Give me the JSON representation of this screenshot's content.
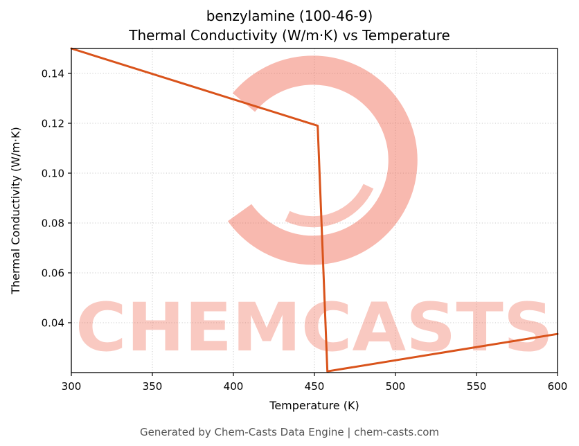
{
  "header": {
    "title_line1": "benzylamine (100-46-9)",
    "title_line2": "Thermal Conductivity (W/m·K) vs Temperature"
  },
  "footer": {
    "credit": "Generated by Chem-Casts Data Engine | chem-casts.com"
  },
  "watermark": {
    "text": "CHEMCASTS",
    "logo": "chemcasts-brush-swirl-logo",
    "color": "#ee5941"
  },
  "chart_data": {
    "type": "line",
    "title": "benzylamine (100-46-9) — Thermal Conductivity (W/m·K) vs Temperature",
    "xlabel": "Temperature (K)",
    "ylabel": "Thermal Conductivity (W/m·K)",
    "xlim": [
      300,
      600
    ],
    "ylim": [
      0.02,
      0.15
    ],
    "xticks": [
      300,
      350,
      400,
      450,
      500,
      550,
      600
    ],
    "yticks": [
      0.04,
      0.06,
      0.08,
      0.1,
      0.12,
      0.14
    ],
    "grid": true,
    "legend": "none",
    "line_color": "#d9531b",
    "line_width": 3,
    "series": [
      {
        "name": "thermal-conductivity",
        "x": [
          300,
          452,
          458,
          600
        ],
        "y": [
          0.15,
          0.119,
          0.0205,
          0.0355
        ]
      }
    ]
  }
}
